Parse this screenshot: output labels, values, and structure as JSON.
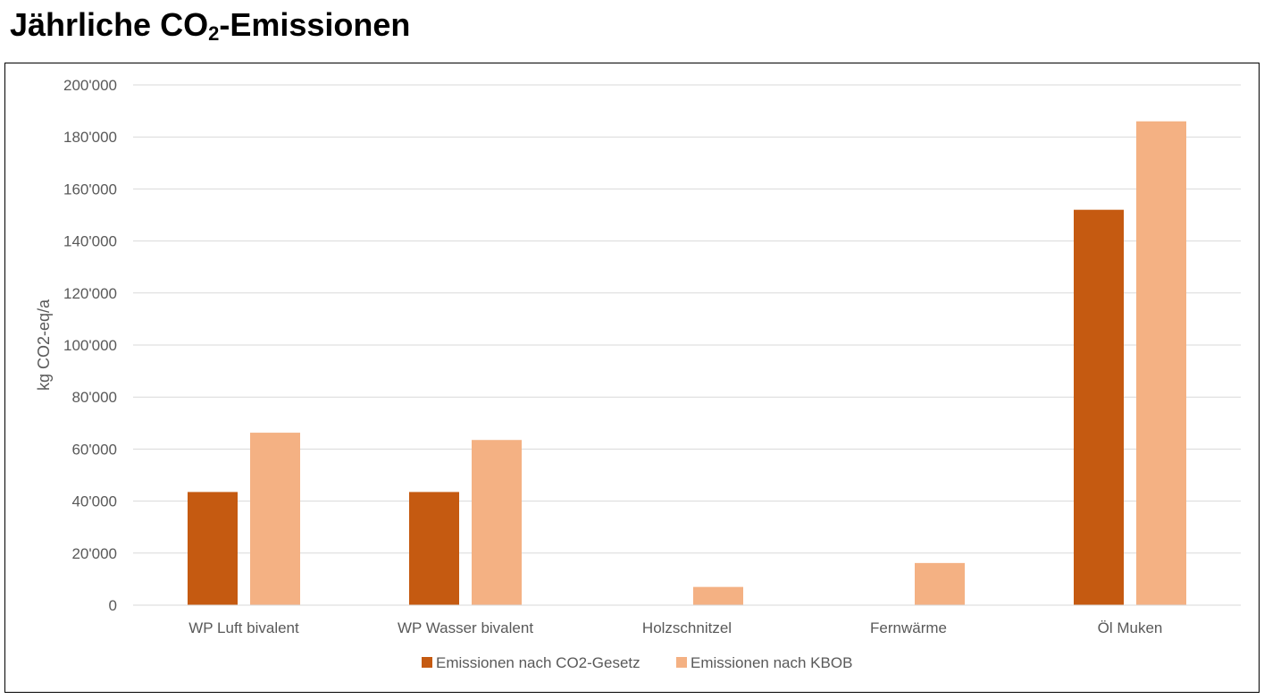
{
  "page": {
    "title_main": "Jährliche CO",
    "title_sub": "2",
    "title_rest": "-Emissionen"
  },
  "chart_data": {
    "type": "bar",
    "categories": [
      "WP Luft bivalent",
      "WP Wasser bivalent",
      "Holzschnitzel",
      "Fernwärme",
      "Öl Muken"
    ],
    "series": [
      {
        "name": "Emissionen nach CO2-Gesetz",
        "values": [
          43500,
          43500,
          0,
          0,
          152000
        ],
        "color": "#C55A11"
      },
      {
        "name": "Emissionen nach KBOB",
        "values": [
          66300,
          63500,
          7000,
          16200,
          186000
        ],
        "color": "#F4B183"
      }
    ],
    "ylabel": "kg CO2-eq/a",
    "ylim": [
      0,
      200000
    ],
    "yticks": [
      {
        "value": 0,
        "label": "0"
      },
      {
        "value": 20000,
        "label": "20'000"
      },
      {
        "value": 40000,
        "label": "40'000"
      },
      {
        "value": 60000,
        "label": "60'000"
      },
      {
        "value": 80000,
        "label": "80'000"
      },
      {
        "value": 100000,
        "label": "100'000"
      },
      {
        "value": 120000,
        "label": "120'000"
      },
      {
        "value": 140000,
        "label": "140'000"
      },
      {
        "value": 160000,
        "label": "160'000"
      },
      {
        "value": 180000,
        "label": "180'000"
      },
      {
        "value": 200000,
        "label": "200'000"
      }
    ],
    "grid": true,
    "legend_position": "bottom",
    "colors": {
      "grid": "#D9D9D9",
      "axis_text": "#595959"
    }
  }
}
